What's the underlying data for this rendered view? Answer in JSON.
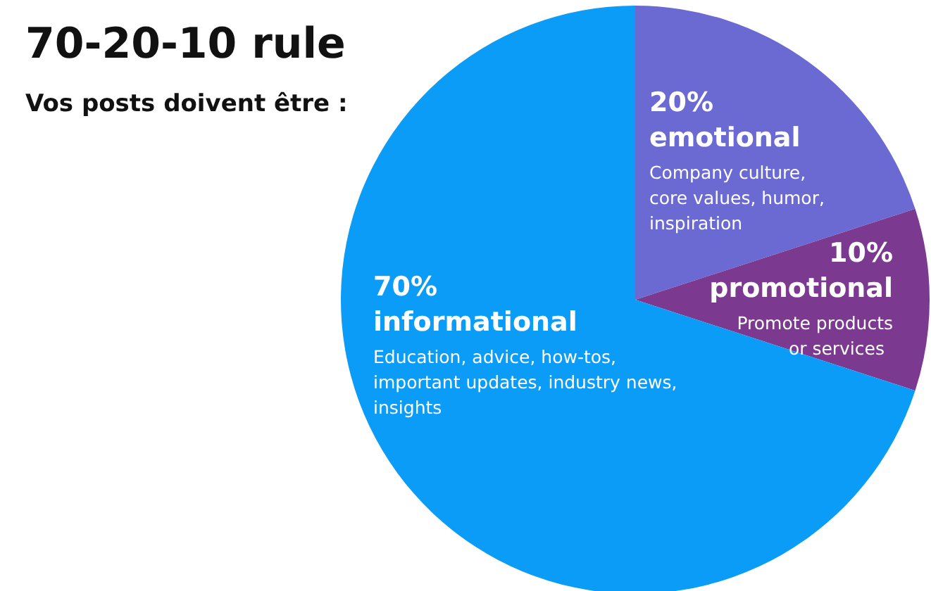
{
  "chart_data": {
    "type": "pie",
    "title": "70-20-10 rule",
    "subtitle": "Vos posts doivent être :",
    "categories": [
      "emotional",
      "promotional",
      "informational"
    ],
    "values": [
      20,
      10,
      70
    ],
    "colors": [
      "#6b6ad2",
      "#7b3a8f",
      "#0a9cf6"
    ],
    "value_labels": [
      "20%",
      "10%",
      "70%"
    ],
    "annotations": [
      "Company culture, core values, humor, inspiration",
      "Promote products or services",
      "Education, advice, how-tos, important updates, industry news, insights"
    ],
    "data_labels": true
  }
}
